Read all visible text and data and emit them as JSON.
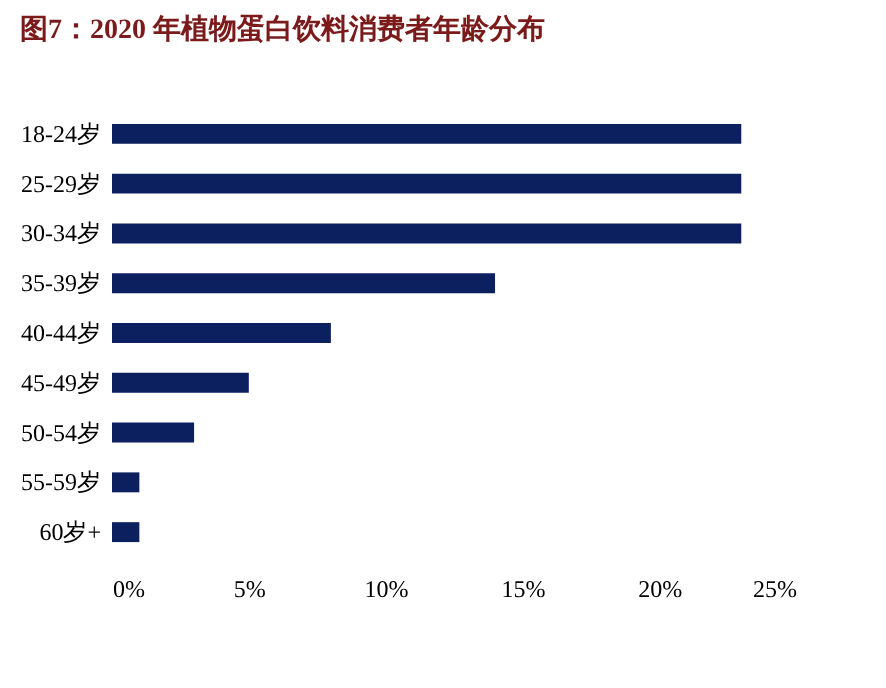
{
  "chart_data": {
    "type": "bar",
    "orientation": "horizontal",
    "title": "图7：2020 年植物蛋白饮料消费者年龄分布",
    "categories": [
      "18-24岁",
      "25-29岁",
      "30-34岁",
      "35-39岁",
      "40-44岁",
      "45-49岁",
      "50-54岁",
      "55-59岁",
      "60岁+"
    ],
    "values": [
      23,
      23,
      23,
      14,
      8,
      5,
      3,
      1,
      1
    ],
    "color": "#0c1f5e",
    "xlim": [
      0,
      25
    ],
    "xticks": [
      {
        "value": 0,
        "label": "0%"
      },
      {
        "value": 5,
        "label": "5%"
      },
      {
        "value": 10,
        "label": "10%"
      },
      {
        "value": 15,
        "label": "15%"
      },
      {
        "value": 20,
        "label": "20%"
      },
      {
        "value": 25,
        "label": "25%"
      }
    ],
    "grid": false
  }
}
